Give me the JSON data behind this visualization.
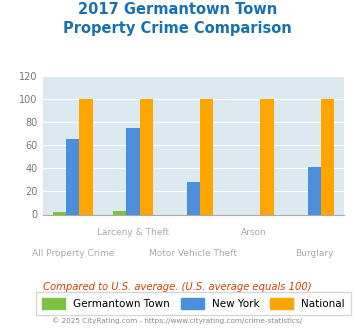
{
  "title_line1": "2017 Germantown Town",
  "title_line2": "Property Crime Comparison",
  "categories": [
    "All Property Crime",
    "Larceny & Theft",
    "Motor Vehicle Theft",
    "Arson",
    "Burglary"
  ],
  "x_top_labels": [
    "",
    "Larceny & Theft",
    "",
    "Arson",
    ""
  ],
  "x_bot_labels": [
    "All Property Crime",
    "",
    "Motor Vehicle Theft",
    "",
    "Burglary"
  ],
  "germantown": [
    2,
    3,
    0,
    0,
    0
  ],
  "new_york": [
    65,
    75,
    28,
    0,
    41
  ],
  "national": [
    100,
    100,
    100,
    100,
    100
  ],
  "germantown_color": "#7dc142",
  "new_york_color": "#4c8edb",
  "national_color": "#ffa500",
  "title_color": "#1a6faf",
  "background_color": "#dce9f0",
  "ylim": [
    0,
    120
  ],
  "yticks": [
    0,
    20,
    40,
    60,
    80,
    100,
    120
  ],
  "legend_labels": [
    "Germantown Town",
    "New York",
    "National"
  ],
  "note": "Compared to U.S. average. (U.S. average equals 100)",
  "footer": "© 2025 CityRating.com - https://www.cityrating.com/crime-statistics/"
}
